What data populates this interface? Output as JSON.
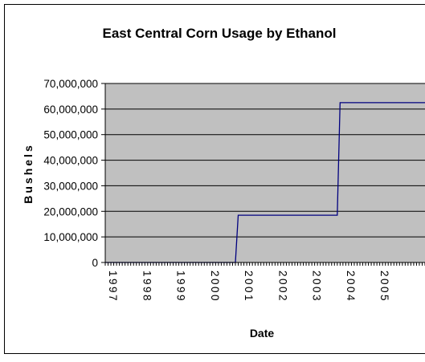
{
  "chart_data": {
    "type": "line",
    "title": "East Central Corn Usage by Ethanol",
    "xlabel": "Date",
    "ylabel": "Bushels",
    "ylim": [
      0,
      70000000
    ],
    "yticks": [
      "0",
      "10,000,000",
      "20,000,000",
      "30,000,000",
      "40,000,000",
      "50,000,000",
      "60,000,000",
      "70,000,000"
    ],
    "xticks": [
      "1997",
      "1998",
      "1999",
      "2000",
      "2001",
      "2002",
      "2003",
      "2004",
      "2005"
    ],
    "xlim": [
      "1997-01",
      "2006-06"
    ],
    "grid": true,
    "legend": "none",
    "plot_background": "#c0c0c0",
    "line_color": "#00007f",
    "series": [
      {
        "x": [
          "1997-01",
          "2000-11",
          "2000-12",
          "2003-11",
          "2003-12",
          "2006-06"
        ],
        "values": [
          0,
          0,
          18500000,
          18500000,
          62500000,
          62500000
        ]
      }
    ]
  }
}
